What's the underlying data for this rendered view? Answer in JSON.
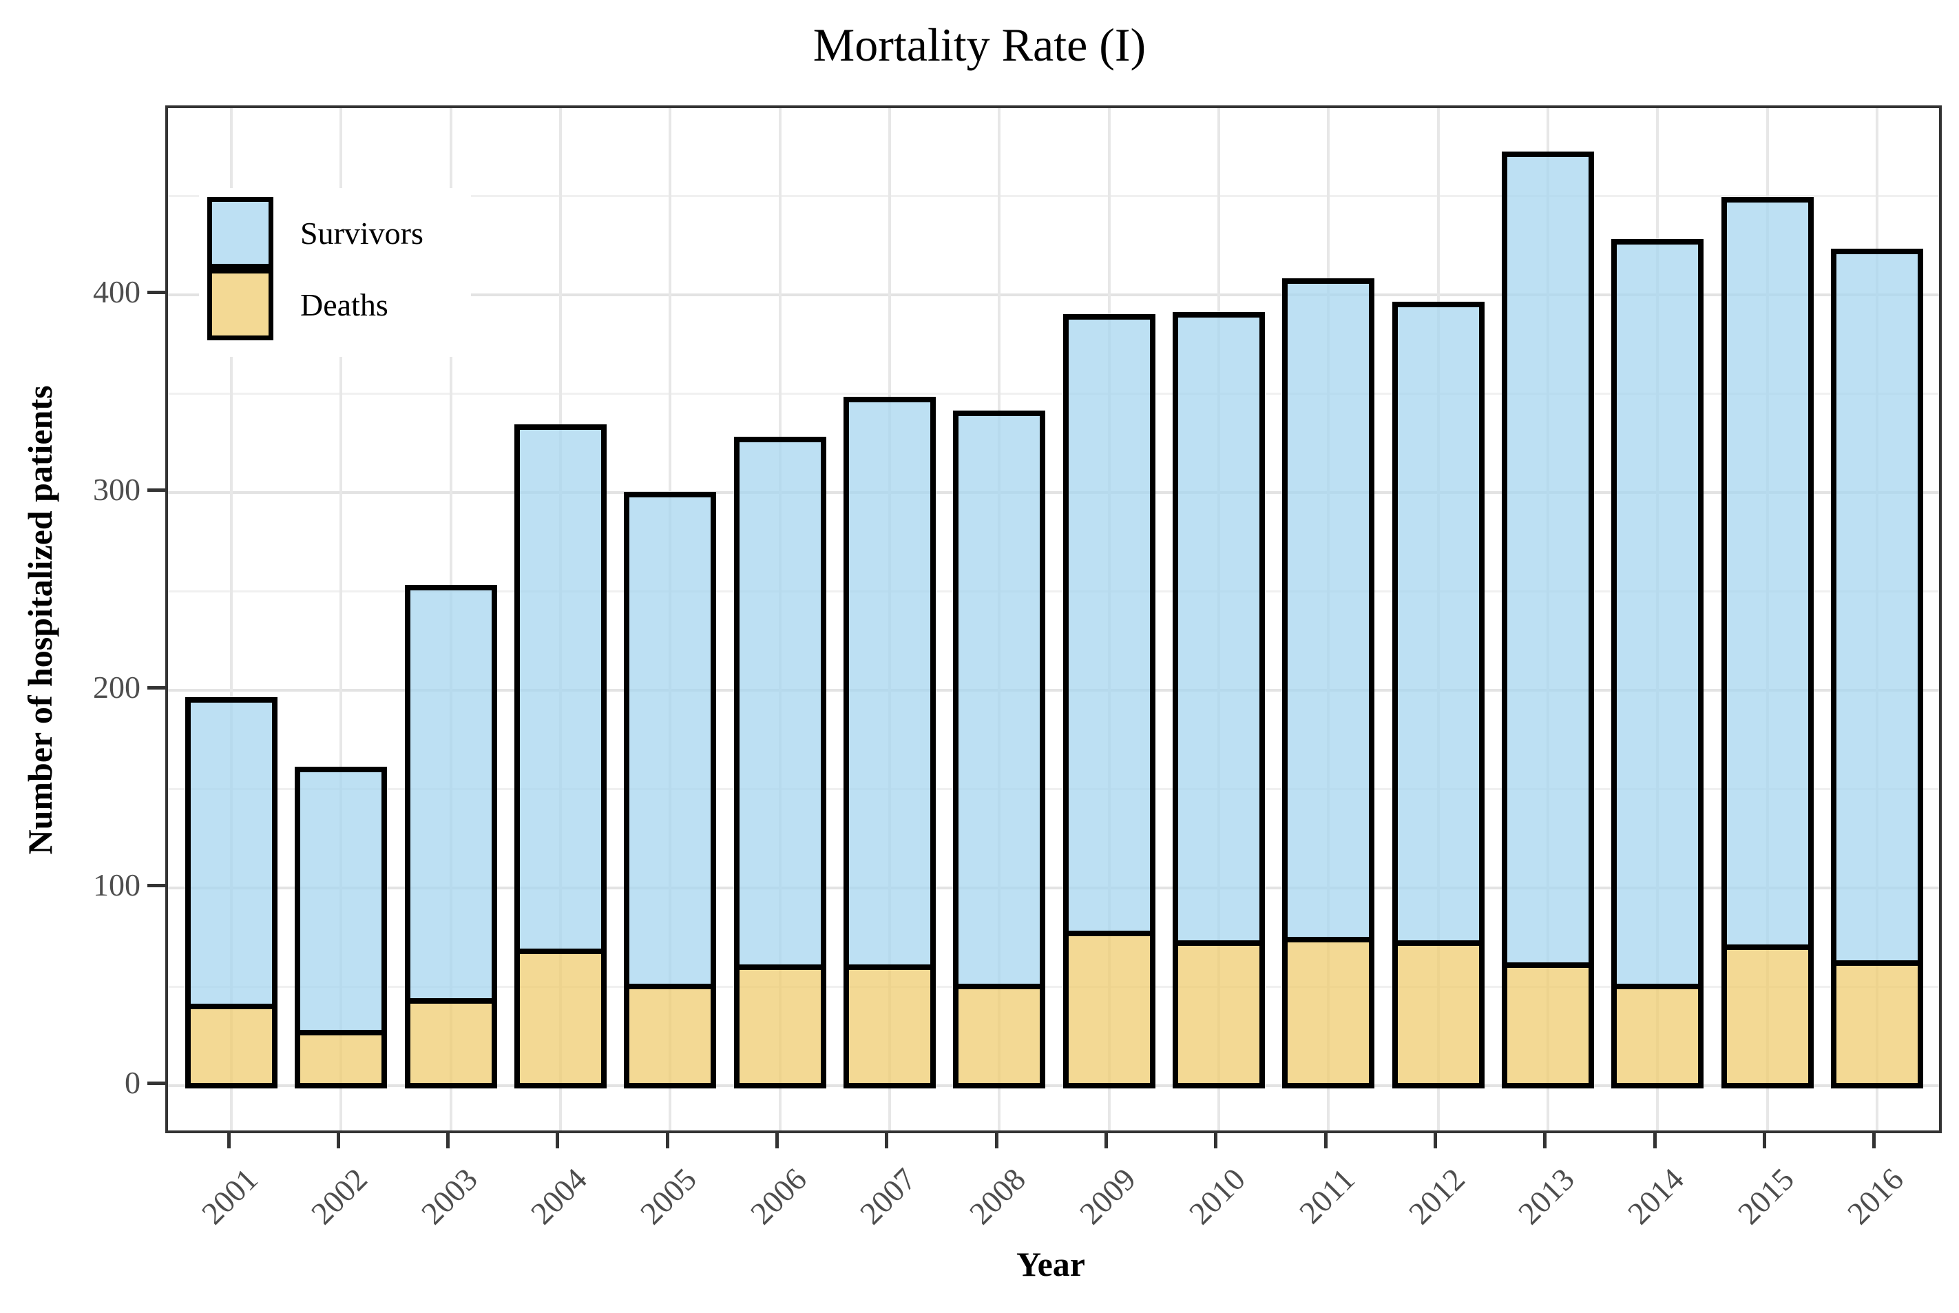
{
  "title": "Mortality Rate (I)",
  "x_axis": {
    "label": "Year"
  },
  "y_axis": {
    "label": "Number of hospitalized patients"
  },
  "legend": {
    "survivors_label": "Survivors",
    "deaths_label": "Deaths"
  },
  "colors": {
    "survivors_fill": "#bde0f3",
    "deaths_fill": "#f3d994",
    "bar_stroke": "#000000",
    "panel_border": "#333333",
    "major_grid": "#e3e3e3",
    "minor_grid": "#f0f0f0",
    "tick_text": "#4d4d4d"
  },
  "chart_data": {
    "type": "bar",
    "stacked": true,
    "title": "Mortality Rate (I)",
    "xlabel": "Year",
    "ylabel": "Number of hospitalized patients",
    "categories": [
      "2001",
      "2002",
      "2003",
      "2004",
      "2005",
      "2006",
      "2007",
      "2008",
      "2009",
      "2010",
      "2011",
      "2012",
      "2013",
      "2014",
      "2015",
      "2016"
    ],
    "series": [
      {
        "name": "Deaths",
        "values": [
          40,
          27,
          43,
          68,
          50,
          60,
          60,
          50,
          77,
          72,
          74,
          72,
          61,
          50,
          70,
          62
        ]
      },
      {
        "name": "Survivors",
        "values": [
          155,
          133,
          209,
          265,
          249,
          267,
          287,
          290,
          312,
          318,
          333,
          323,
          410,
          377,
          378,
          360
        ]
      }
    ],
    "totals": [
      195,
      160,
      252,
      333,
      299,
      327,
      347,
      340,
      389,
      390,
      407,
      395,
      471,
      427,
      448,
      422
    ],
    "y_major_ticks": [
      0,
      100,
      200,
      300,
      400
    ],
    "y_minor_gridlines": [
      50,
      150,
      250,
      350,
      450
    ],
    "ylim": [
      0,
      475
    ],
    "grid": "on",
    "legend_position": "inside-top-left",
    "bar_style": "black outline, semi-transparent fills over gridlines"
  }
}
